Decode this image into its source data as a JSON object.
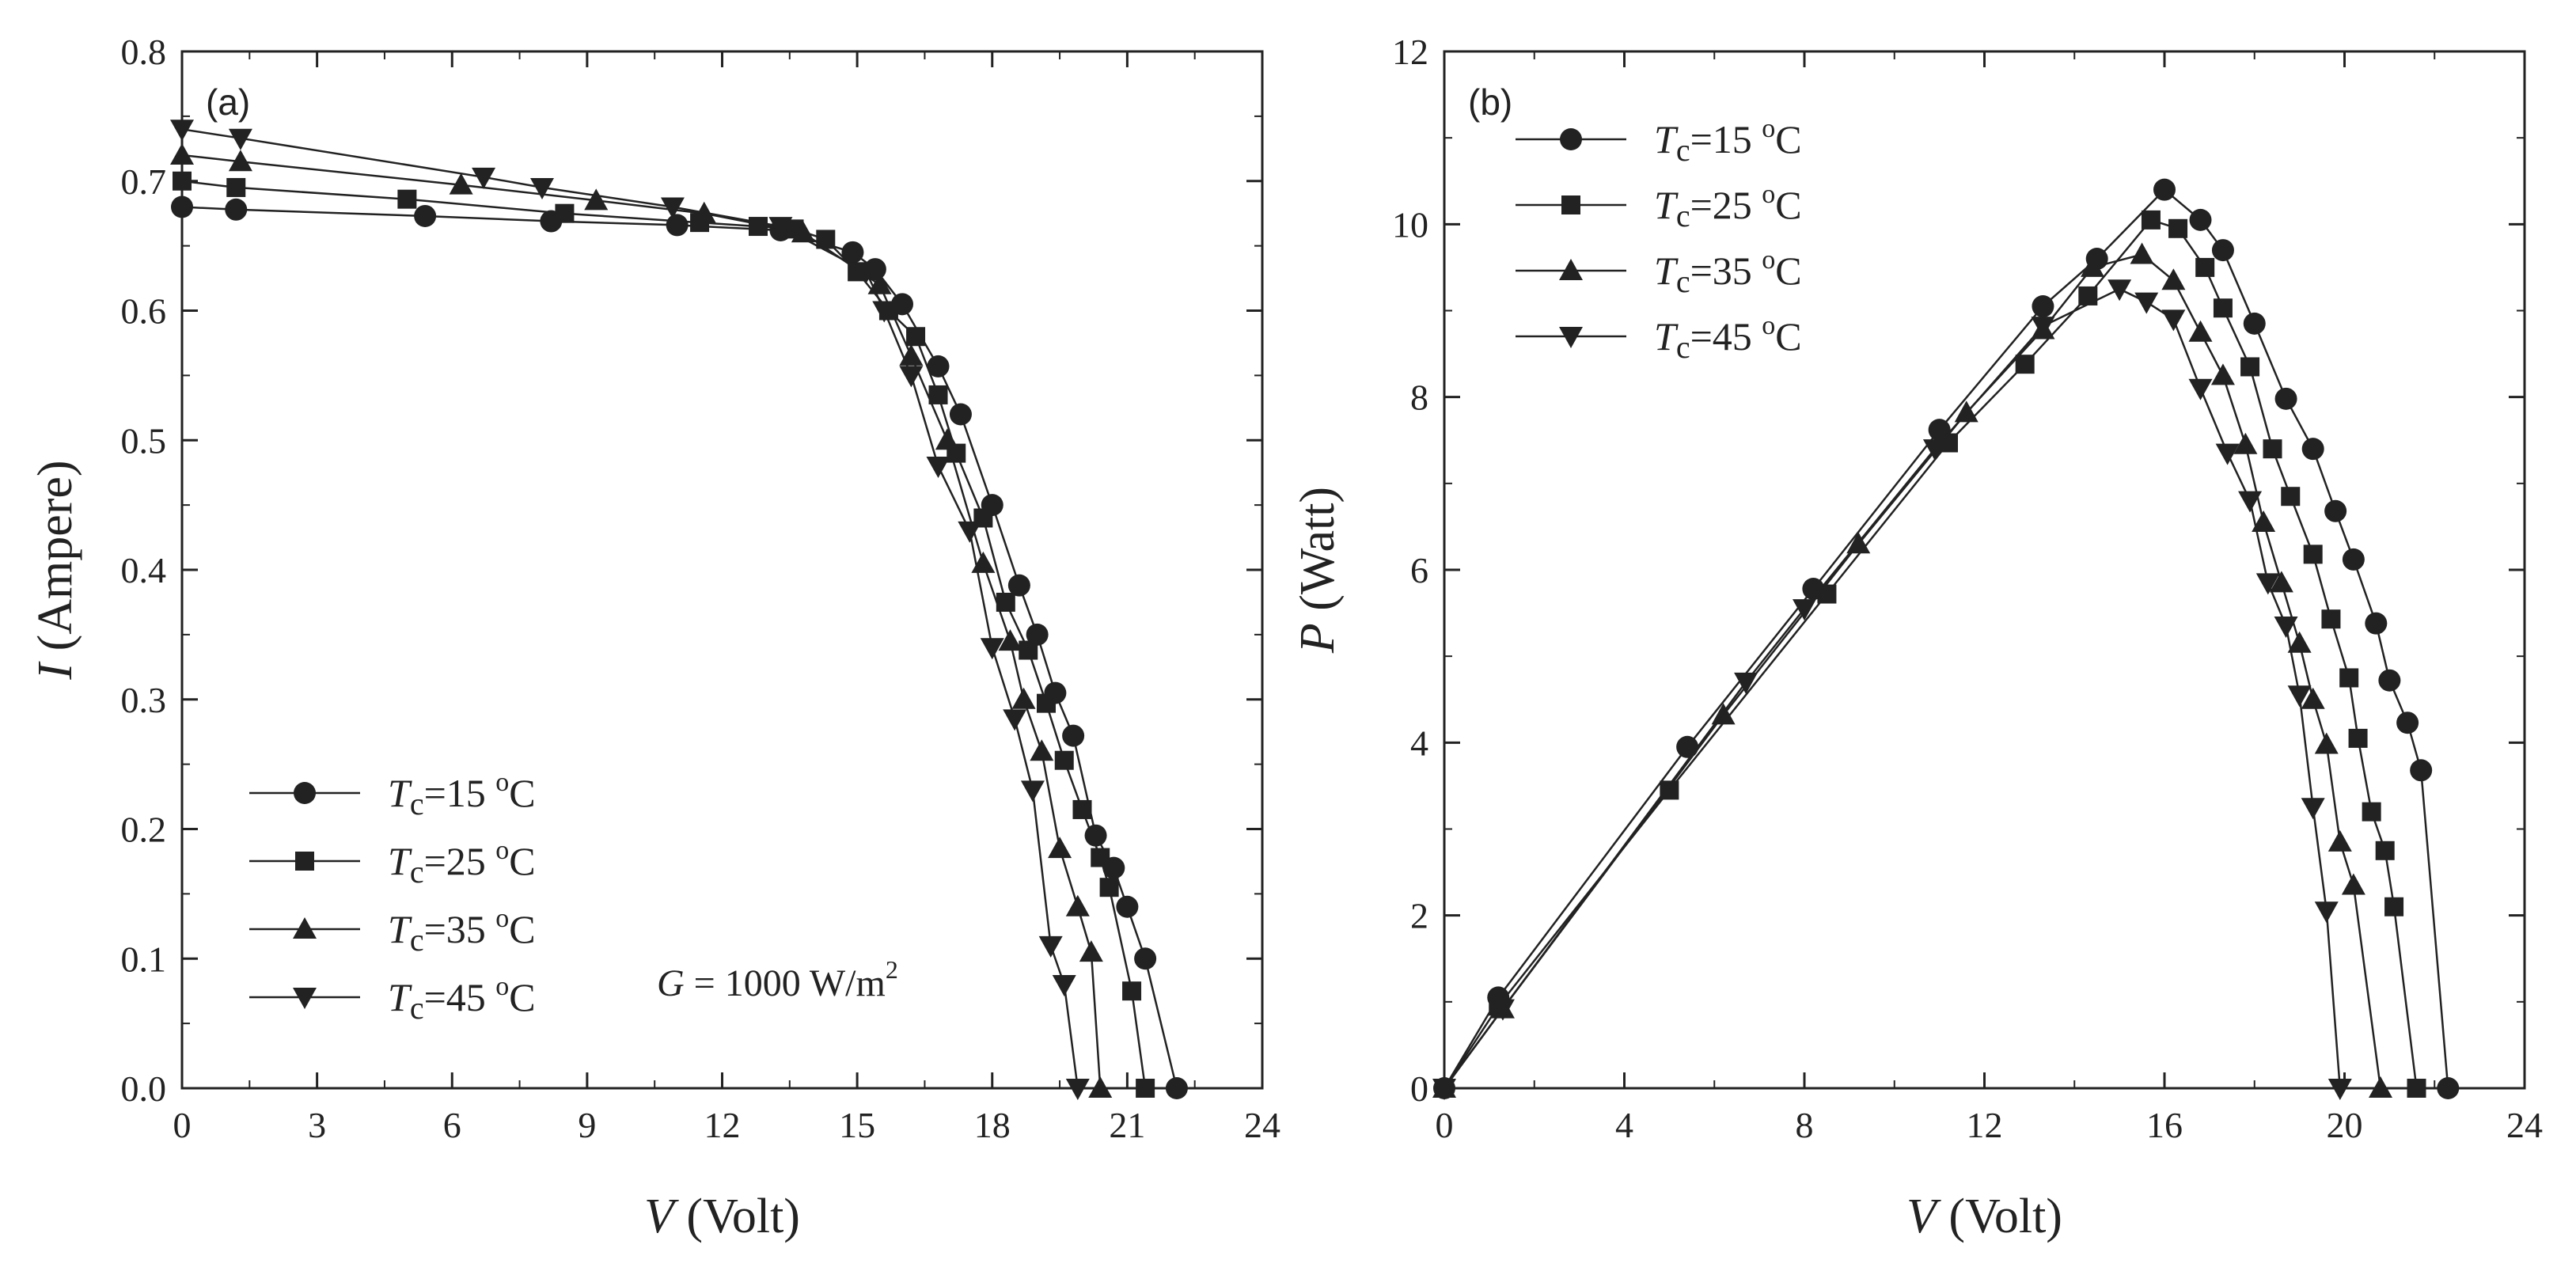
{
  "chart_data": [
    {
      "type": "line",
      "panel_label": "(a)",
      "xlabel": {
        "var": "V",
        "unit": "(Volt)"
      },
      "ylabel": {
        "var": "I",
        "unit": "(Ampere)"
      },
      "xlim": [
        0,
        24
      ],
      "ylim": [
        0,
        0.8
      ],
      "xticks": [
        "0",
        "3",
        "6",
        "9",
        "12",
        "15",
        "18",
        "21",
        "24"
      ],
      "yticks": [
        "0.0",
        "0.1",
        "0.2",
        "0.3",
        "0.4",
        "0.5",
        "0.6",
        "0.7",
        "0.8"
      ],
      "grid": false,
      "legend_position": "bottom-left",
      "annotation": {
        "var": "G",
        "text": " = 1000 W/m",
        "sup": "2"
      },
      "series": [
        {
          "name": "Tc=15 °C",
          "legend_var": "T",
          "legend_sub": "c",
          "legend_rest": "=15 ",
          "legend_sup": "o",
          "legend_unit": "C",
          "marker": "circle",
          "x": [
            0,
            1.2,
            5.4,
            8.2,
            11,
            13.3,
            14.9,
            15.4,
            16,
            16.8,
            17.3,
            18,
            18.6,
            19,
            19.4,
            19.8,
            20.3,
            20.7,
            21,
            21.4,
            22.1
          ],
          "y": [
            0.68,
            0.678,
            0.673,
            0.669,
            0.666,
            0.662,
            0.645,
            0.632,
            0.605,
            0.557,
            0.52,
            0.45,
            0.388,
            0.35,
            0.305,
            0.272,
            0.195,
            0.17,
            0.14,
            0.1,
            0
          ]
        },
        {
          "name": "Tc=25 °C",
          "legend_var": "T",
          "legend_sub": "c",
          "legend_rest": "=25 ",
          "legend_sup": "o",
          "legend_unit": "C",
          "marker": "square",
          "x": [
            0,
            1.2,
            5,
            8.5,
            11.5,
            12.8,
            13.6,
            14.3,
            15,
            15.7,
            16.3,
            16.8,
            17.2,
            17.8,
            18.3,
            18.8,
            19.2,
            19.6,
            20,
            20.4,
            20.6,
            21.1,
            21.4
          ],
          "y": [
            0.7,
            0.695,
            0.686,
            0.675,
            0.668,
            0.665,
            0.663,
            0.655,
            0.63,
            0.6,
            0.58,
            0.535,
            0.49,
            0.44,
            0.375,
            0.338,
            0.297,
            0.253,
            0.215,
            0.178,
            0.155,
            0.075,
            0
          ]
        },
        {
          "name": "Tc=35 °C",
          "legend_var": "T",
          "legend_sub": "c",
          "legend_rest": "=35 ",
          "legend_sup": "o",
          "legend_unit": "C",
          "marker": "triangle-up",
          "x": [
            0,
            1.3,
            6.2,
            9.2,
            11.6,
            13.8,
            15.5,
            16.2,
            17,
            17.8,
            18.4,
            18.7,
            19.1,
            19.5,
            19.9,
            20.2,
            20.4
          ],
          "y": [
            0.72,
            0.715,
            0.697,
            0.685,
            0.675,
            0.66,
            0.62,
            0.565,
            0.5,
            0.405,
            0.345,
            0.3,
            0.26,
            0.185,
            0.14,
            0.105,
            0
          ]
        },
        {
          "name": "Tc=45 °C",
          "legend_var": "T",
          "legend_sub": "c",
          "legend_rest": "=45 ",
          "legend_sup": "o",
          "legend_unit": "C",
          "marker": "triangle-down",
          "x": [
            0,
            1.3,
            6.7,
            8,
            10.9,
            13.3,
            15.2,
            15.6,
            16.2,
            16.8,
            17.5,
            18,
            18.5,
            18.9,
            19.3,
            19.6,
            19.9
          ],
          "y": [
            0.74,
            0.733,
            0.703,
            0.695,
            0.68,
            0.665,
            0.63,
            0.6,
            0.55,
            0.48,
            0.43,
            0.34,
            0.285,
            0.23,
            0.11,
            0.08,
            0
          ]
        }
      ]
    },
    {
      "type": "line",
      "panel_label": "(b)",
      "xlabel": {
        "var": "V",
        "unit": "(Volt)"
      },
      "ylabel": {
        "var": "P",
        "unit": "(Watt)"
      },
      "xlim": [
        0,
        24
      ],
      "ylim": [
        0,
        12
      ],
      "xticks": [
        "0",
        "4",
        "8",
        "12",
        "16",
        "20",
        "24"
      ],
      "yticks": [
        "0",
        "2",
        "4",
        "6",
        "8",
        "10",
        "12"
      ],
      "grid": false,
      "legend_position": "top-left",
      "series": [
        {
          "name": "Tc=15 °C",
          "legend_var": "T",
          "legend_sub": "c",
          "legend_rest": "=15 ",
          "legend_sup": "o",
          "legend_unit": "C",
          "marker": "circle",
          "x": [
            0,
            1.2,
            5.4,
            8.2,
            11,
            13.3,
            14.5,
            16,
            16.8,
            17.3,
            18,
            18.7,
            19.3,
            19.8,
            20.2,
            20.7,
            21,
            21.4,
            21.7,
            22.3
          ],
          "y": [
            0,
            1.05,
            3.95,
            5.78,
            7.62,
            9.05,
            9.6,
            10.4,
            10.05,
            9.7,
            8.85,
            7.98,
            7.4,
            6.68,
            6.12,
            5.38,
            4.72,
            4.23,
            3.68,
            0
          ]
        },
        {
          "name": "Tc=25 °C",
          "legend_var": "T",
          "legend_sub": "c",
          "legend_rest": "=25 ",
          "legend_sup": "o",
          "legend_unit": "C",
          "marker": "square",
          "x": [
            0,
            1.2,
            5,
            8.5,
            11.2,
            12.9,
            14.3,
            15.7,
            16.3,
            16.9,
            17.3,
            17.9,
            18.4,
            18.8,
            19.3,
            19.7,
            20.1,
            20.3,
            20.6,
            20.9,
            21.1,
            21.6
          ],
          "y": [
            0,
            0.95,
            3.45,
            5.72,
            7.47,
            8.38,
            9.17,
            10.05,
            9.95,
            9.5,
            9.03,
            8.35,
            7.4,
            6.85,
            6.18,
            5.43,
            4.75,
            4.05,
            3.2,
            2.75,
            2.1,
            0
          ]
        },
        {
          "name": "Tc=35 °C",
          "legend_var": "T",
          "legend_sub": "c",
          "legend_rest": "=35 ",
          "legend_sup": "o",
          "legend_unit": "C",
          "marker": "triangle-up",
          "x": [
            0,
            1.3,
            6.2,
            9.2,
            11.6,
            13.3,
            14.4,
            15.5,
            16.2,
            16.8,
            17.3,
            17.8,
            18.2,
            18.6,
            19,
            19.3,
            19.6,
            19.9,
            20.2,
            20.8
          ],
          "y": [
            0,
            0.92,
            4.32,
            6.3,
            7.82,
            8.78,
            9.5,
            9.65,
            9.35,
            8.75,
            8.25,
            7.45,
            6.55,
            5.85,
            5.15,
            4.5,
            3.98,
            2.85,
            2.35,
            0
          ]
        },
        {
          "name": "Tc=45 °C",
          "legend_var": "T",
          "legend_sub": "c",
          "legend_rest": "=45 ",
          "legend_sup": "o",
          "legend_unit": "C",
          "marker": "triangle-down",
          "x": [
            0,
            1.3,
            6.7,
            8,
            10.9,
            13.3,
            15,
            15.6,
            16.2,
            16.8,
            17.4,
            17.9,
            18.3,
            18.7,
            19,
            19.3,
            19.6,
            19.9
          ],
          "y": [
            0,
            0.92,
            4.7,
            5.55,
            7.4,
            8.82,
            9.25,
            9.1,
            8.9,
            8.1,
            7.35,
            6.8,
            5.85,
            5.35,
            4.55,
            3.25,
            2.05,
            0
          ]
        }
      ]
    }
  ]
}
